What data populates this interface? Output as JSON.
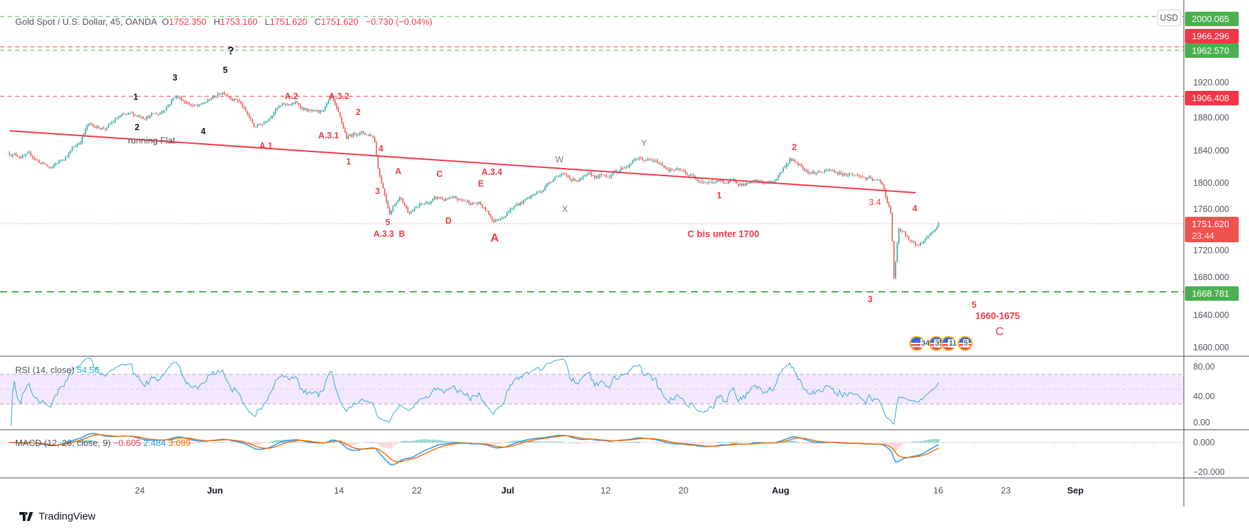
{
  "header": {
    "symbol": "Gold Spot / U.S. Dollar, 45, OANDA",
    "o_label": "O",
    "open": "1752.350",
    "h_label": "H",
    "high": "1753.160",
    "l_label": "L",
    "low": "1751.620",
    "c_label": "C",
    "close": "1751.620",
    "change": "−0.730 (−0.04%)"
  },
  "currency": "USD",
  "price_axis": {
    "ticks": [
      "1920.000",
      "1880.000",
      "1840.000",
      "1800.000",
      "1760.000",
      "1720.000",
      "1680.000",
      "1640.000",
      "1600.000"
    ]
  },
  "levels": [
    {
      "label": "2000.065",
      "color": "#4caf50"
    },
    {
      "label": "1966.296",
      "color": "#f23645"
    },
    {
      "label": "1962.570",
      "color": "#4caf50"
    },
    {
      "label": "1906.408",
      "color": "#f23645"
    },
    {
      "label": "1668.781",
      "color": "#4caf50"
    }
  ],
  "last_price": {
    "price": "1751.620",
    "countdown": "23:44",
    "color": "#ef5350"
  },
  "annotations": {
    "q": "?",
    "b5": "5",
    "b3": "3",
    "b1": "1",
    "b2": "2",
    "running_flat": "running Flat",
    "b4": "4",
    "a1": "A.1",
    "a2": "A.2",
    "a32": "A.3.2",
    "r2a": "2",
    "a31": "A.3.1",
    "r4a": "4",
    "r1a": "1",
    "r3a": "3",
    "r5a": "5",
    "a33b": "A.3.3  B",
    "sa": "A",
    "sc": "C",
    "a34": "A.3.4",
    "se": "E",
    "sd": "D",
    "bigA": "A",
    "w": "W",
    "x": "X",
    "y": "Y",
    "r1b": "1",
    "c_bis": "C bis unter 1700",
    "r2b": "2",
    "r34": "3.4",
    "r4b": "4",
    "r3b": "3",
    "r5b": "5",
    "target": "1660-1675",
    "bigC": "C"
  },
  "events": [
    "34",
    "3",
    "11",
    "5"
  ],
  "rsi": {
    "label": "RSI (14, close)",
    "value": "54.56",
    "ticks": [
      "80.00",
      "40.00",
      "0.00"
    ],
    "upper_band": 70,
    "lower_band": 30,
    "mid": 50
  },
  "macd": {
    "label": "MACD (12, 26, close, 9)",
    "hist": "−0.605",
    "macd": "2.484",
    "signal": "3.089",
    "ticks": [
      "0.000",
      "−20.000"
    ]
  },
  "x_axis": {
    "ticks": [
      "24",
      "Jun",
      "14",
      "22",
      "Jul",
      "12",
      "20",
      "Aug",
      "16",
      "23",
      "Sep"
    ]
  },
  "brand": "TradingView",
  "colors": {
    "up": "#26a69a",
    "down": "#ef5350",
    "rsi": "#2fa8d8",
    "macd": "#2196f3",
    "signal": "#ff6d00",
    "trend": "#f23645"
  },
  "chart_data": {
    "type": "candlestick",
    "title": "Gold Spot / U.S. Dollar, 45, OANDA",
    "ylim": [
      1590,
      2010
    ],
    "x_ticks_days": {
      "24": 0,
      "Jun": 8,
      "14": 21,
      "22": 29,
      "Jul": 38,
      "12": 49,
      "20": 57,
      "Aug": 69,
      "16": 84,
      "23": 91,
      "Sep": 100
    },
    "price_path_day_price": [
      [
        -13.9,
        1837
      ],
      [
        -11.5,
        1832
      ],
      [
        -9.4,
        1817
      ],
      [
        -6.4,
        1851
      ],
      [
        -5.6,
        1870
      ],
      [
        -3.5,
        1868
      ],
      [
        -2.2,
        1880
      ],
      [
        2.1,
        1885
      ],
      [
        3.75,
        1907
      ],
      [
        6.3,
        1892
      ],
      [
        8.9,
        1912
      ],
      [
        10.5,
        1902
      ],
      [
        12.1,
        1868
      ],
      [
        13,
        1873
      ],
      [
        14.3,
        1892
      ],
      [
        16.4,
        1897
      ],
      [
        18.9,
        1882
      ],
      [
        20.2,
        1902
      ],
      [
        21.8,
        1854
      ],
      [
        23,
        1863
      ],
      [
        24.6,
        1858
      ],
      [
        25.1,
        1815
      ],
      [
        26.2,
        1767
      ],
      [
        27.2,
        1786
      ],
      [
        28.1,
        1767
      ],
      [
        31.1,
        1781
      ],
      [
        35.1,
        1776
      ],
      [
        36.7,
        1754
      ],
      [
        38.2,
        1769
      ],
      [
        41.7,
        1791
      ],
      [
        43.5,
        1812
      ],
      [
        45.3,
        1805
      ],
      [
        49,
        1808
      ],
      [
        52.3,
        1830
      ],
      [
        53.9,
        1826
      ],
      [
        57.1,
        1812
      ],
      [
        60.3,
        1802
      ],
      [
        65,
        1800
      ],
      [
        68,
        1800
      ],
      [
        69.9,
        1830
      ],
      [
        71.9,
        1815
      ],
      [
        75.8,
        1812
      ],
      [
        78.7,
        1799
      ],
      [
        79.5,
        1762
      ],
      [
        79.8,
        1680
      ],
      [
        80.2,
        1743
      ],
      [
        82,
        1723
      ],
      [
        83.1,
        1737
      ],
      [
        84.2,
        1751.62
      ]
    ],
    "trendline": {
      "from": [
        -13.9,
        1862
      ],
      "to": [
        84.2,
        1791
      ]
    }
  }
}
